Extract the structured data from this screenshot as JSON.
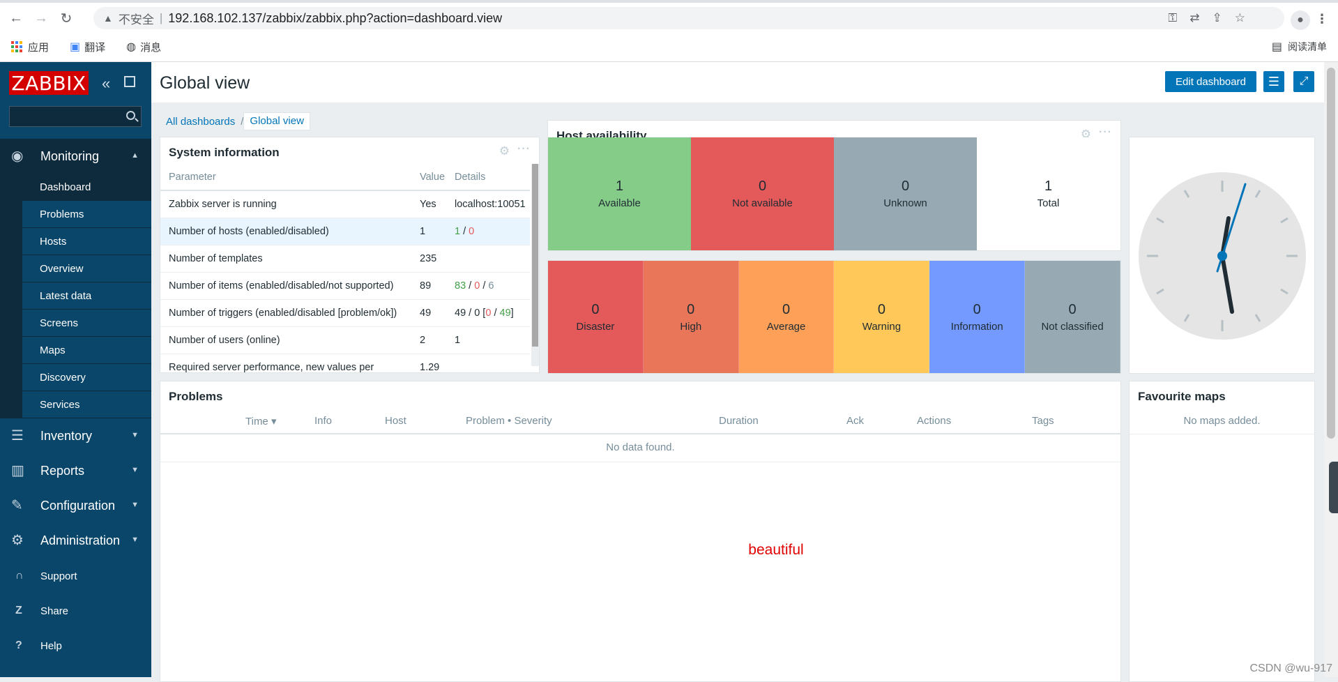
{
  "browser": {
    "insecure_label": "不安全",
    "url": "192.168.102.137/zabbix/zabbix.php?action=dashboard.view",
    "bookmarks": [
      {
        "label": "应用",
        "icon": "apps-grid-icon"
      },
      {
        "label": "翻译",
        "icon": "translate-icon"
      },
      {
        "label": "消息",
        "icon": "globe-icon"
      }
    ],
    "reading_list": "阅读清单"
  },
  "sidebar": {
    "logo": "ZABBIX",
    "search_placeholder": "",
    "monitoring": {
      "label": "Monitoring",
      "items": [
        "Dashboard",
        "Problems",
        "Hosts",
        "Overview",
        "Latest data",
        "Screens",
        "Maps",
        "Discovery",
        "Services"
      ]
    },
    "sections": [
      "Inventory",
      "Reports",
      "Configuration",
      "Administration"
    ],
    "bottom": [
      "Support",
      "Share",
      "Help"
    ]
  },
  "header": {
    "title": "Global view",
    "edit_label": "Edit dashboard"
  },
  "breadcrumbs": {
    "all": "All dashboards",
    "sep": "/",
    "current": "Global view"
  },
  "system_info": {
    "title": "System information",
    "columns": [
      "Parameter",
      "Value",
      "Details"
    ],
    "rows": [
      {
        "param": "Zabbix server is running",
        "value": "Yes",
        "details": "localhost:10051"
      },
      {
        "param": "Number of hosts (enabled/disabled)",
        "value": "1",
        "d1": "1",
        "s1": " / ",
        "d2": "0"
      },
      {
        "param": "Number of templates",
        "value": "235"
      },
      {
        "param": "Number of items (enabled/disabled/not supported)",
        "value": "89",
        "d1": "83",
        "s1": " / ",
        "d2": "0",
        "s2": " / ",
        "d3": "6"
      },
      {
        "param": "Number of triggers (enabled/disabled [problem/ok])",
        "value": "49",
        "d0": "49 / 0 [",
        "d2": "0",
        "s2": " / ",
        "d1": "49",
        "end": "]"
      },
      {
        "param": "Number of users (online)",
        "value": "2",
        "d1": "1"
      },
      {
        "param": "Required server performance, new values per",
        "value": "1.29"
      }
    ]
  },
  "host_availability": {
    "title": "Host availability",
    "cells": [
      {
        "num": "1",
        "label": "Available",
        "color": "#86cc89"
      },
      {
        "num": "0",
        "label": "Not available",
        "color": "#e45959"
      },
      {
        "num": "0",
        "label": "Unknown",
        "color": "#97aab3"
      },
      {
        "num": "1",
        "label": "Total",
        "color": "#ffffff"
      }
    ]
  },
  "severity": [
    {
      "num": "0",
      "label": "Disaster",
      "color": "#e45959"
    },
    {
      "num": "0",
      "label": "High",
      "color": "#e97659"
    },
    {
      "num": "0",
      "label": "Average",
      "color": "#ffa059"
    },
    {
      "num": "0",
      "label": "Warning",
      "color": "#ffc859"
    },
    {
      "num": "0",
      "label": "Information",
      "color": "#7499ff"
    },
    {
      "num": "0",
      "label": "Not classified",
      "color": "#97aab3"
    }
  ],
  "problems": {
    "title": "Problems",
    "columns": [
      "Time ▾",
      "Info",
      "Host",
      "Problem • Severity",
      "Duration",
      "Ack",
      "Actions",
      "Tags"
    ],
    "empty": "No data found.",
    "note": "beautiful"
  },
  "favourite_maps": {
    "title": "Favourite maps",
    "empty": "No maps added."
  },
  "watermark": "CSDN @wu-917"
}
